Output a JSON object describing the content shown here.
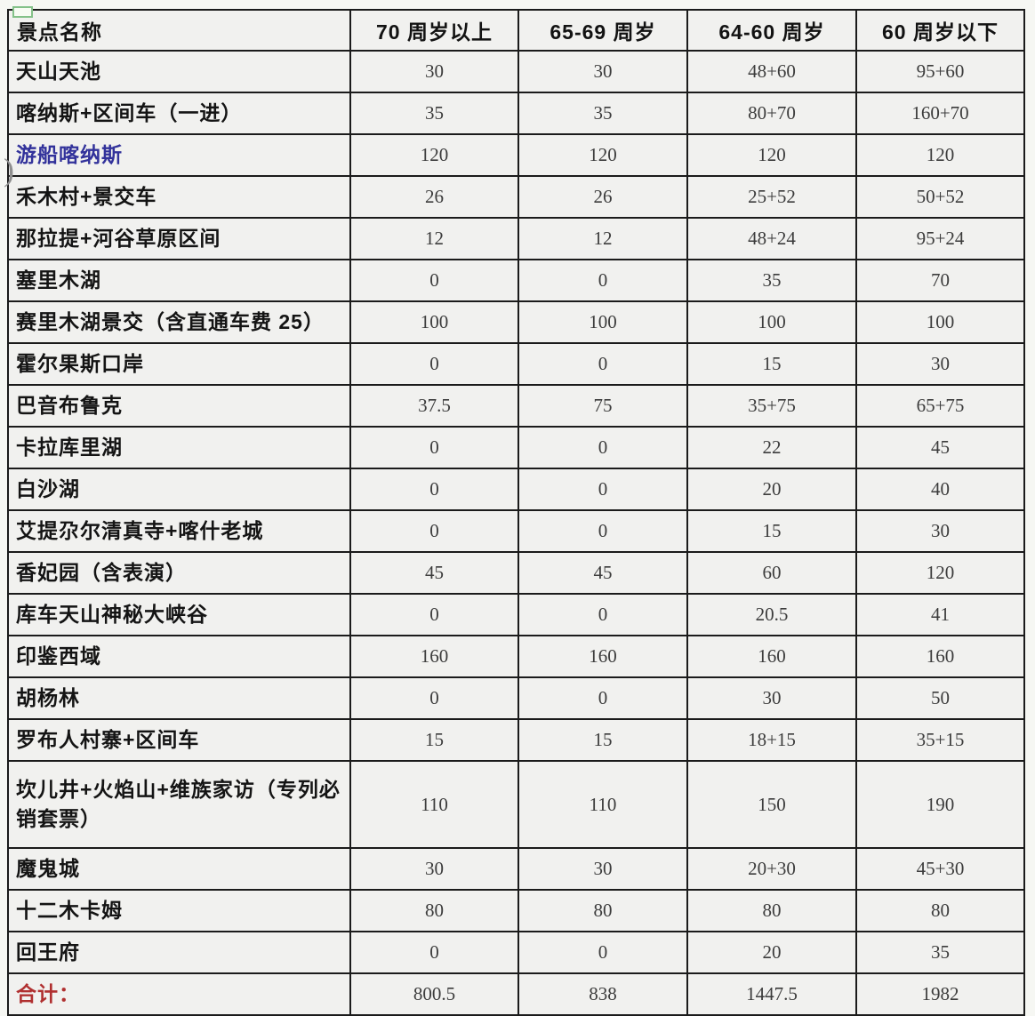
{
  "table": {
    "columns": [
      "景点名称",
      "70 周岁以上",
      "65-69 周岁",
      "64-60 周岁",
      "60 周岁以下"
    ],
    "rows": [
      {
        "name": "天山天池",
        "style": "normal",
        "values": [
          "30",
          "30",
          "48+60",
          "95+60"
        ]
      },
      {
        "name": "喀纳斯+区间车（一进）",
        "style": "normal",
        "values": [
          "35",
          "35",
          "80+70",
          "160+70"
        ]
      },
      {
        "name": "游船喀纳斯",
        "style": "blue",
        "values": [
          "120",
          "120",
          "120",
          "120"
        ]
      },
      {
        "name": "禾木村+景交车",
        "style": "normal",
        "values": [
          "26",
          "26",
          "25+52",
          "50+52"
        ]
      },
      {
        "name": "那拉提+河谷草原区间",
        "style": "normal",
        "values": [
          "12",
          "12",
          "48+24",
          "95+24"
        ]
      },
      {
        "name": "塞里木湖",
        "style": "normal",
        "values": [
          "0",
          "0",
          "35",
          "70"
        ]
      },
      {
        "name": "赛里木湖景交（含直通车费 25）",
        "style": "normal",
        "values": [
          "100",
          "100",
          "100",
          "100"
        ]
      },
      {
        "name": "霍尔果斯口岸",
        "style": "normal",
        "values": [
          "0",
          "0",
          "15",
          "30"
        ]
      },
      {
        "name": "巴音布鲁克",
        "style": "normal",
        "values": [
          "37.5",
          "75",
          "35+75",
          "65+75"
        ]
      },
      {
        "name": "卡拉库里湖",
        "style": "normal",
        "values": [
          "0",
          "0",
          "22",
          "45"
        ]
      },
      {
        "name": "白沙湖",
        "style": "normal",
        "values": [
          "0",
          "0",
          "20",
          "40"
        ]
      },
      {
        "name": "艾提尕尔清真寺+喀什老城",
        "style": "normal",
        "values": [
          "0",
          "0",
          "15",
          "30"
        ]
      },
      {
        "name": "香妃园（含表演）",
        "style": "normal",
        "values": [
          "45",
          "45",
          "60",
          "120"
        ]
      },
      {
        "name": "库车天山神秘大峡谷",
        "style": "normal",
        "values": [
          "0",
          "0",
          "20.5",
          "41"
        ]
      },
      {
        "name": "印鉴西域",
        "style": "normal",
        "values": [
          "160",
          "160",
          "160",
          "160"
        ]
      },
      {
        "name": "胡杨林",
        "style": "normal",
        "values": [
          "0",
          "0",
          "30",
          "50"
        ]
      },
      {
        "name": "罗布人村寨+区间车",
        "style": "normal",
        "values": [
          "15",
          "15",
          "18+15",
          "35+15"
        ]
      },
      {
        "name": "坎儿井+火焰山+维族家访（专列必销套票）",
        "style": "tall",
        "values": [
          "110",
          "110",
          "150",
          "190"
        ]
      },
      {
        "name": "魔鬼城",
        "style": "normal",
        "values": [
          "30",
          "30",
          "20+30",
          "45+30"
        ]
      },
      {
        "name": "十二木卡姆",
        "style": "normal",
        "values": [
          "80",
          "80",
          "80",
          "80"
        ]
      },
      {
        "name": "回王府",
        "style": "normal",
        "values": [
          "0",
          "0",
          "20",
          "35"
        ]
      }
    ],
    "total": {
      "label": "合计：",
      "values": [
        "800.5",
        "838",
        "1447.5",
        "1982"
      ]
    }
  },
  "colors": {
    "boat_row_text": "#32329b",
    "total_label_text": "#b03030",
    "cell_background": "#f1f1ef",
    "border": "#1b1b1b",
    "selection_handle_green": "#84c189"
  }
}
